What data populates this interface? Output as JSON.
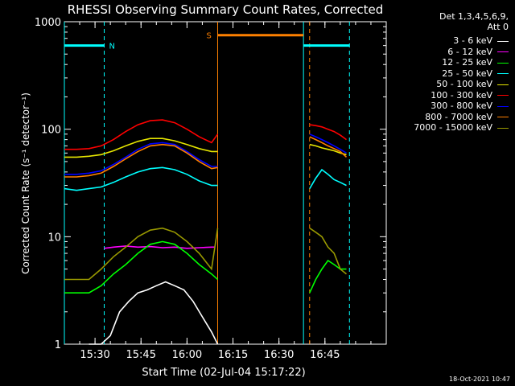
{
  "chart_data": {
    "type": "line",
    "title": "RHESSI Observing Summary Count Rates, Corrected",
    "xlabel": "Start Time (02-Jul-04 15:17:22)",
    "ylabel": "Corrected Count Rate (s⁻¹ detector⁻¹)",
    "y_scale": "log",
    "ylim": [
      1,
      1000
    ],
    "xlim_minutes_after_1520": [
      0,
      105
    ],
    "x_ticks": [
      "15:30",
      "15:45",
      "16:00",
      "16:15",
      "16:30",
      "16:45"
    ],
    "y_ticks": [
      "1",
      "10",
      "100",
      "1000"
    ],
    "legend_header": [
      "Det 1,3,4,5,6,9,",
      "Att 0"
    ],
    "legend_placement": "right",
    "annotations": [
      {
        "label": "N",
        "color": "#00ffff"
      },
      {
        "label": "S",
        "color": "#ff8000"
      }
    ],
    "series": [
      {
        "name": "3 - 6 keV",
        "color": "#ffffff",
        "segments": [
          {
            "x": [
              "15:28",
              "15:32",
              "15:35",
              "15:38",
              "15:41",
              "15:44",
              "15:47",
              "15:50",
              "15:53",
              "15:56",
              "15:59",
              "16:02",
              "16:05",
              "16:08",
              "16:10"
            ],
            "y": [
              1.0,
              1.0,
              1.2,
              2.0,
              2.5,
              3.0,
              3.2,
              3.5,
              3.8,
              3.5,
              3.2,
              2.5,
              1.8,
              1.3,
              1.0
            ]
          }
        ]
      },
      {
        "name": "6 - 12 keV",
        "color": "#ff00ff",
        "segments": [
          {
            "x": [
              "15:33",
              "15:36",
              "15:40",
              "15:44",
              "15:48",
              "15:52",
              "15:56",
              "16:00",
              "16:04",
              "16:08",
              "16:09"
            ],
            "y": [
              7.8,
              8.0,
              8.2,
              8.0,
              8.1,
              7.9,
              8.0,
              7.8,
              7.9,
              8.0,
              8.0
            ]
          }
        ]
      },
      {
        "name": "12 - 25 keV",
        "color": "#00ff00",
        "segments": [
          {
            "x": [
              "15:20",
              "15:24",
              "15:28",
              "15:32",
              "15:36",
              "15:40",
              "15:44",
              "15:48",
              "15:52",
              "15:56",
              "16:00",
              "16:04",
              "16:08",
              "16:10"
            ],
            "y": [
              3.0,
              3.0,
              3.0,
              3.5,
              4.5,
              5.5,
              7.0,
              8.5,
              9.0,
              8.5,
              7.0,
              5.5,
              4.5,
              4.0
            ]
          },
          {
            "x": [
              "16:40",
              "16:42",
              "16:44",
              "16:46",
              "16:48",
              "16:50",
              "16:52"
            ],
            "y": [
              3.0,
              4.0,
              5.0,
              6.0,
              5.5,
              5.0,
              5.0
            ]
          }
        ]
      },
      {
        "name": "25 - 50 keV",
        "color": "#00ffff",
        "segments": [
          {
            "x": [
              "15:20",
              "15:24",
              "15:28",
              "15:32",
              "15:36",
              "15:40",
              "15:44",
              "15:48",
              "15:52",
              "15:56",
              "16:00",
              "16:04",
              "16:08",
              "16:10"
            ],
            "y": [
              28,
              27,
              28,
              29,
              32,
              36,
              40,
              43,
              44,
              42,
              38,
              33,
              30,
              30
            ]
          },
          {
            "x": [
              "16:40",
              "16:42",
              "16:44",
              "16:46",
              "16:48",
              "16:50",
              "16:52"
            ],
            "y": [
              28,
              35,
              42,
              38,
              34,
              32,
              30
            ]
          }
        ]
      },
      {
        "name": "50 - 100 keV",
        "color": "#e6e600",
        "segments": [
          {
            "x": [
              "15:20",
              "15:24",
              "15:28",
              "15:32",
              "15:36",
              "15:40",
              "15:44",
              "15:48",
              "15:52",
              "15:56",
              "16:00",
              "16:04",
              "16:08",
              "16:10"
            ],
            "y": [
              55,
              55,
              56,
              58,
              63,
              70,
              77,
              82,
              82,
              78,
              72,
              66,
              62,
              62
            ]
          },
          {
            "x": [
              "16:40",
              "16:42",
              "16:44",
              "16:46",
              "16:48",
              "16:50",
              "16:52"
            ],
            "y": [
              72,
              70,
              67,
              65,
              63,
              60,
              58
            ]
          }
        ]
      },
      {
        "name": "100 - 300 keV",
        "color": "#ff0000",
        "segments": [
          {
            "x": [
              "15:20",
              "15:24",
              "15:28",
              "15:32",
              "15:36",
              "15:40",
              "15:44",
              "15:48",
              "15:52",
              "15:56",
              "16:00",
              "16:04",
              "16:08",
              "16:10"
            ],
            "y": [
              65,
              65,
              66,
              70,
              80,
              95,
              110,
              120,
              122,
              115,
              100,
              85,
              75,
              90
            ]
          },
          {
            "x": [
              "16:40",
              "16:42",
              "16:44",
              "16:46",
              "16:48",
              "16:50",
              "16:52"
            ],
            "y": [
              110,
              108,
              105,
              100,
              95,
              88,
              80
            ]
          }
        ]
      },
      {
        "name": "300 - 800 keV",
        "color": "#0000ff",
        "segments": [
          {
            "x": [
              "15:20",
              "15:24",
              "15:28",
              "15:32",
              "15:36",
              "15:40",
              "15:44",
              "15:48",
              "15:52",
              "15:56",
              "16:00",
              "16:04",
              "16:08",
              "16:10"
            ],
            "y": [
              38,
              38,
              39,
              41,
              47,
              55,
              65,
              73,
              75,
              72,
              62,
              52,
              45,
              45
            ]
          },
          {
            "x": [
              "16:40",
              "16:42",
              "16:44",
              "16:46",
              "16:48",
              "16:50",
              "16:52"
            ],
            "y": [
              90,
              85,
              80,
              75,
              70,
              65,
              60
            ]
          }
        ]
      },
      {
        "name": "800 - 7000 keV",
        "color": "#ff8000",
        "segments": [
          {
            "x": [
              "15:20",
              "15:24",
              "15:28",
              "15:32",
              "15:36",
              "15:40",
              "15:44",
              "15:48",
              "15:52",
              "15:56",
              "16:00",
              "16:04",
              "16:08",
              "16:10"
            ],
            "y": [
              36,
              36,
              37,
              39,
              45,
              53,
              62,
              70,
              72,
              70,
              60,
              50,
              43,
              44
            ]
          },
          {
            "x": [
              "16:40",
              "16:42",
              "16:44",
              "16:46",
              "16:48",
              "16:50",
              "16:52"
            ],
            "y": [
              85,
              80,
              75,
              70,
              66,
              62,
              55
            ]
          }
        ]
      },
      {
        "name": "7000 - 15000 keV",
        "color": "#999900",
        "segments": [
          {
            "x": [
              "15:20",
              "15:24",
              "15:28",
              "15:32",
              "15:36",
              "15:40",
              "15:44",
              "15:48",
              "15:52",
              "15:56",
              "16:00",
              "16:04",
              "16:08",
              "16:10"
            ],
            "y": [
              4.0,
              4.0,
              4.0,
              5.0,
              6.5,
              8.0,
              10.0,
              11.5,
              12.0,
              11.0,
              9.0,
              7.0,
              5.0,
              12.0
            ]
          },
          {
            "x": [
              "16:40",
              "16:42",
              "16:44",
              "16:46",
              "16:48",
              "16:50",
              "16:52"
            ],
            "y": [
              12,
              11,
              10,
              8,
              7,
              5,
              4.5
            ]
          }
        ]
      }
    ],
    "orbit_markers": {
      "night_bar": {
        "label": "N",
        "color": "#00ffff",
        "x_start": "15:20",
        "x_end": "15:33",
        "level": 600
      },
      "night_bar2": {
        "color": "#00ffff",
        "x_start": "16:38",
        "x_end": "16:53",
        "level": 600
      },
      "saa_bar": {
        "label": "S",
        "color": "#ff8000",
        "x_start": "16:10",
        "x_end": "16:38",
        "level": 750
      },
      "vlines": [
        {
          "x": "15:20",
          "color": "#00ffff",
          "style": "solid"
        },
        {
          "x": "15:33",
          "color": "#00ffff",
          "style": "dashed"
        },
        {
          "x": "16:10",
          "color": "#ff8000",
          "style": "solid"
        },
        {
          "x": "16:38",
          "color": "#00ffff",
          "style": "solid"
        },
        {
          "x": "16:40",
          "color": "#ff8000",
          "style": "dashed"
        },
        {
          "x": "16:53",
          "color": "#00ffff",
          "style": "dashed"
        }
      ]
    }
  },
  "footer": {
    "timestamp": "18-Oct-2021 10:47"
  }
}
